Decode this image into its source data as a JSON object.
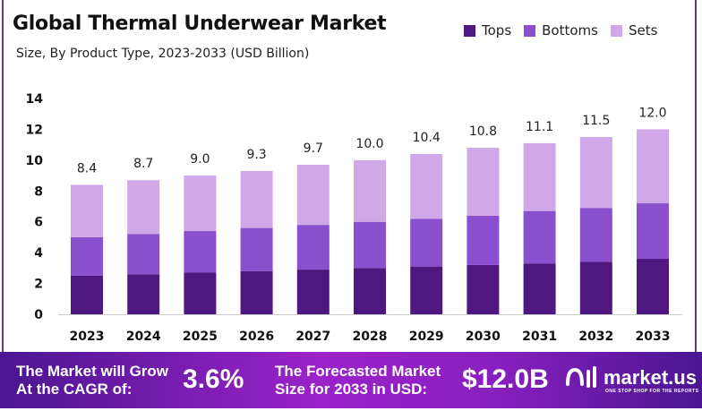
{
  "header": {
    "title": "Global Thermal Underwear Market",
    "subtitle": "Size, By Product Type, 2023-2033 (USD Billion)"
  },
  "chart_data": {
    "type": "bar",
    "stacked": true,
    "title": "Global Thermal Underwear Market",
    "subtitle": "Size, By Product Type, 2023-2033 (USD Billion)",
    "categories": [
      "2023",
      "2024",
      "2025",
      "2026",
      "2027",
      "2028",
      "2029",
      "2030",
      "2031",
      "2032",
      "2033"
    ],
    "series": [
      {
        "name": "Tops",
        "color": "#4e1880",
        "values": [
          2.5,
          2.6,
          2.7,
          2.8,
          2.9,
          3.0,
          3.1,
          3.2,
          3.3,
          3.4,
          3.6
        ]
      },
      {
        "name": "Bottoms",
        "color": "#8a4fcc",
        "values": [
          2.5,
          2.6,
          2.7,
          2.8,
          2.9,
          3.0,
          3.1,
          3.2,
          3.4,
          3.5,
          3.6
        ]
      },
      {
        "name": "Sets",
        "color": "#d0a8e8",
        "values": [
          3.4,
          3.5,
          3.6,
          3.7,
          3.9,
          4.0,
          4.2,
          4.4,
          4.4,
          4.6,
          4.8
        ]
      }
    ],
    "totals": [
      "8.4",
      "8.7",
      "9.0",
      "9.3",
      "9.7",
      "10.0",
      "10.4",
      "10.8",
      "11.1",
      "11.5",
      "12.0"
    ],
    "yticks": [
      "0",
      "2",
      "4",
      "6",
      "8",
      "10",
      "12",
      "14"
    ],
    "ylim": [
      0,
      14
    ],
    "grid": false,
    "legend_position": "top-right"
  },
  "banner": {
    "cagr_label_1": "The Market will Grow",
    "cagr_label_2": "At the CAGR of:",
    "cagr_value": "3.6%",
    "forecast_label_1": "The Forecasted Market",
    "forecast_label_2": "Size for 2033 in USD:",
    "forecast_value": "$12.0B",
    "logo_name": "market.us",
    "logo_tagline": "ONE STOP SHOP FOR THE REPORTS"
  }
}
